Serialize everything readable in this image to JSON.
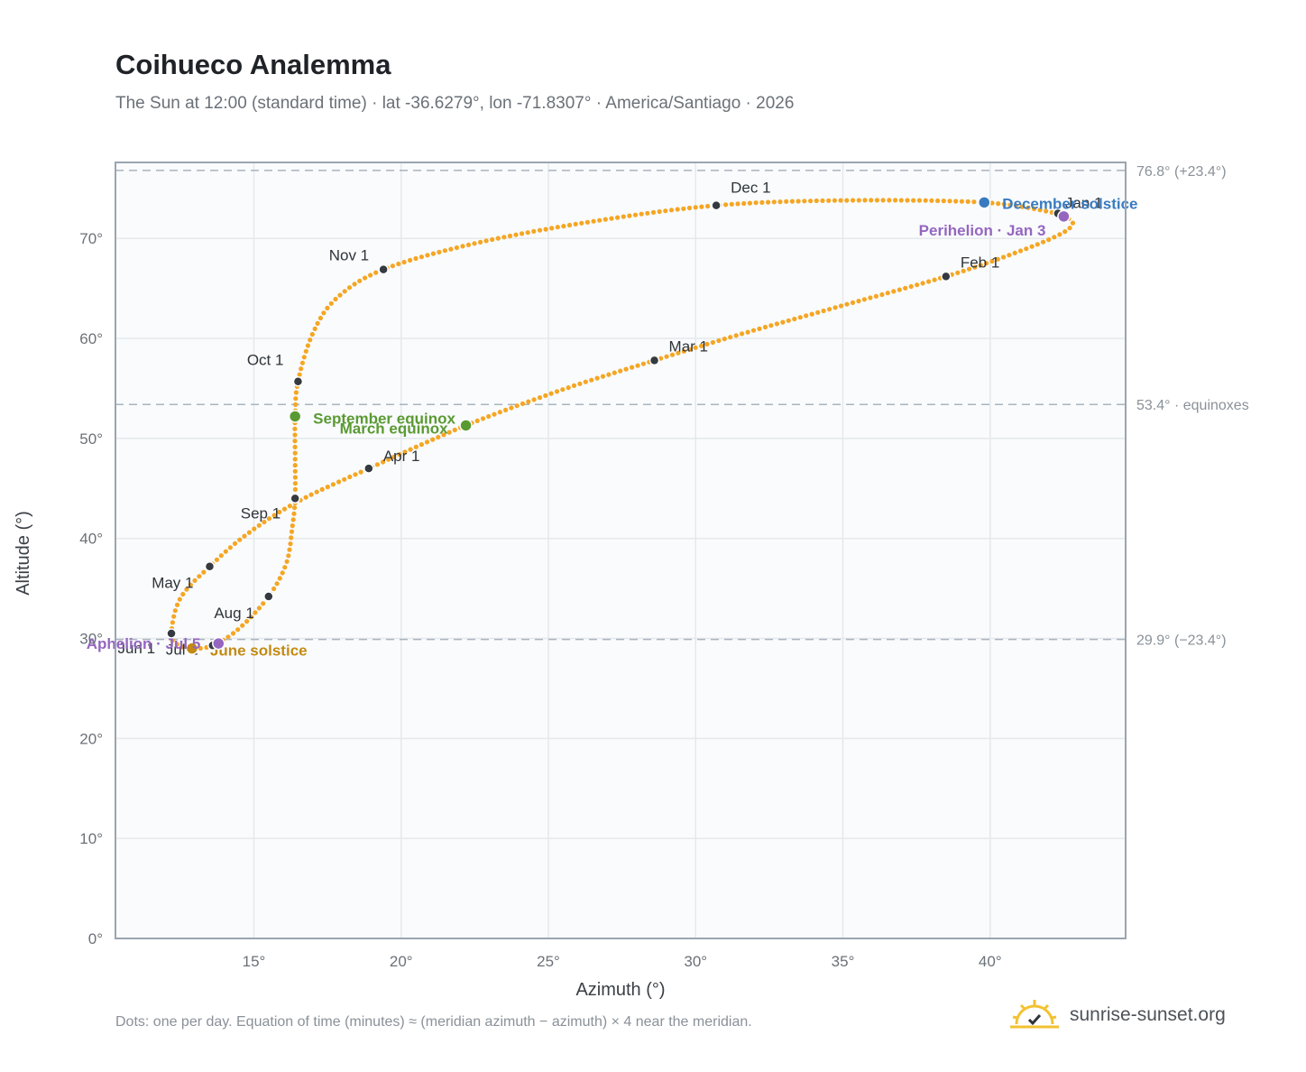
{
  "title": "Coihueco Analemma",
  "subtitle": "The Sun at 12:00 (standard time) · lat -36.6279°, lon -71.8307° · America/Santiago · 2026",
  "footnote": "Dots: one per day. Equation of time (minutes) ≈ (meridian azimuth − azimuth) × 4 near the meridian.",
  "brand": {
    "name": "sunrise-sunset.org",
    "icon": "sun-check-icon"
  },
  "colors": {
    "curve": "#f5a623",
    "month_dot": "#343a40",
    "equinox": "#5a9a32",
    "december_solstice": "#3a7bbf",
    "june_solstice": "#c48a12",
    "apsis": "#9566c0",
    "reference_line": "#aab4be",
    "plot_bg": "#f9fbfd",
    "grid": "#e6e9ec"
  },
  "chart_data": {
    "type": "scatter",
    "xlabel": "Azimuth (°)",
    "ylabel": "Altitude (°)",
    "xlim": [
      10.3,
      44.6
    ],
    "ylim": [
      0,
      77.6
    ],
    "x_ticks": [
      {
        "value": 15,
        "label": "15°"
      },
      {
        "value": 20,
        "label": "20°"
      },
      {
        "value": 25,
        "label": "25°"
      },
      {
        "value": 30,
        "label": "30°"
      },
      {
        "value": 35,
        "label": "35°"
      },
      {
        "value": 40,
        "label": "40°"
      }
    ],
    "y_ticks": [
      {
        "value": 0,
        "label": "0°"
      },
      {
        "value": 10,
        "label": "10°"
      },
      {
        "value": 20,
        "label": "20°"
      },
      {
        "value": 30,
        "label": "30°"
      },
      {
        "value": 40,
        "label": "40°"
      },
      {
        "value": 50,
        "label": "50°"
      },
      {
        "value": 60,
        "label": "60°"
      },
      {
        "value": 70,
        "label": "70°"
      }
    ],
    "grid": true,
    "reference_lines": [
      {
        "y": 76.8,
        "label": "76.8° (+23.4°)"
      },
      {
        "y": 53.4,
        "label": "53.4° · equinoxes"
      },
      {
        "y": 29.9,
        "label": "29.9° (−23.4°)"
      }
    ],
    "months": [
      {
        "label": "Jan 1",
        "x": 42.3,
        "y": 72.5
      },
      {
        "label": "Feb 1",
        "x": 38.5,
        "y": 66.2
      },
      {
        "label": "Mar 1",
        "x": 28.6,
        "y": 57.8
      },
      {
        "label": "Apr 1",
        "x": 18.9,
        "y": 47.0
      },
      {
        "label": "May 1",
        "x": 13.5,
        "y": 37.2
      },
      {
        "label": "Jun 1",
        "x": 12.2,
        "y": 30.5
      },
      {
        "label": "Jul 1",
        "x": 13.6,
        "y": 29.3
      },
      {
        "label": "Aug 1",
        "x": 15.5,
        "y": 34.2
      },
      {
        "label": "Sep 1",
        "x": 16.4,
        "y": 44.0
      },
      {
        "label": "Oct 1",
        "x": 16.5,
        "y": 55.7
      },
      {
        "label": "Nov 1",
        "x": 19.4,
        "y": 66.9
      },
      {
        "label": "Dec 1",
        "x": 30.7,
        "y": 73.3
      }
    ],
    "events": [
      {
        "label": "December solstice",
        "x": 39.8,
        "y": 73.6,
        "color_key": "december_solstice"
      },
      {
        "label": "Perihelion · Jan 3",
        "x": 42.5,
        "y": 72.2,
        "color_key": "apsis"
      },
      {
        "label": "September equinox",
        "x": 16.4,
        "y": 52.2,
        "color_key": "equinox"
      },
      {
        "label": "March equinox",
        "x": 22.2,
        "y": 51.3,
        "color_key": "equinox"
      },
      {
        "label": "June solstice",
        "x": 12.9,
        "y": 29.0,
        "color_key": "june_solstice"
      },
      {
        "label": "Aphelion · Jul 5",
        "x": 13.8,
        "y": 29.5,
        "color_key": "apsis"
      }
    ],
    "curve_path": [
      {
        "x": 42.3,
        "y": 72.5
      },
      {
        "x": 42.6,
        "y": 72.1
      },
      {
        "x": 42.8,
        "y": 71.4
      },
      {
        "x": 42.3,
        "y": 70.3
      },
      {
        "x": 40.8,
        "y": 68.5
      },
      {
        "x": 38.5,
        "y": 66.2
      },
      {
        "x": 35.0,
        "y": 63.3
      },
      {
        "x": 31.5,
        "y": 60.4
      },
      {
        "x": 28.6,
        "y": 57.8
      },
      {
        "x": 25.5,
        "y": 54.9
      },
      {
        "x": 22.2,
        "y": 51.3
      },
      {
        "x": 18.9,
        "y": 47.0
      },
      {
        "x": 16.5,
        "y": 43.7
      },
      {
        "x": 14.8,
        "y": 40.5
      },
      {
        "x": 13.5,
        "y": 37.2
      },
      {
        "x": 12.5,
        "y": 34.0
      },
      {
        "x": 12.2,
        "y": 30.5
      },
      {
        "x": 12.4,
        "y": 29.4
      },
      {
        "x": 12.9,
        "y": 29.0
      },
      {
        "x": 13.6,
        "y": 29.3
      },
      {
        "x": 14.5,
        "y": 31.0
      },
      {
        "x": 15.5,
        "y": 34.2
      },
      {
        "x": 16.1,
        "y": 37.5
      },
      {
        "x": 16.3,
        "y": 41.0
      },
      {
        "x": 16.4,
        "y": 44.0
      },
      {
        "x": 16.4,
        "y": 48.0
      },
      {
        "x": 16.4,
        "y": 52.2
      },
      {
        "x": 16.5,
        "y": 55.7
      },
      {
        "x": 17.0,
        "y": 60.5
      },
      {
        "x": 17.8,
        "y": 64.0
      },
      {
        "x": 19.4,
        "y": 66.9
      },
      {
        "x": 22.5,
        "y": 69.5
      },
      {
        "x": 26.5,
        "y": 71.7
      },
      {
        "x": 30.7,
        "y": 73.3
      },
      {
        "x": 35.0,
        "y": 73.8
      },
      {
        "x": 39.8,
        "y": 73.6
      },
      {
        "x": 42.3,
        "y": 72.5
      }
    ]
  }
}
